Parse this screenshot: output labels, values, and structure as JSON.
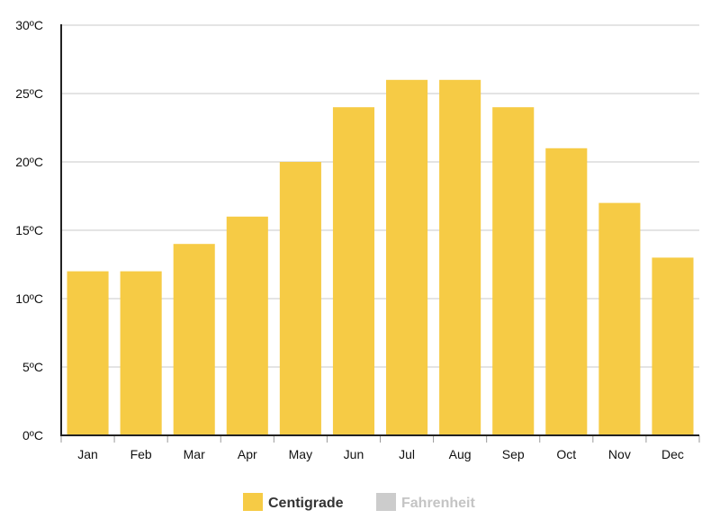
{
  "chart_data": {
    "type": "bar",
    "title": "",
    "xlabel": "",
    "ylabel": "",
    "categories": [
      "Jan",
      "Feb",
      "Mar",
      "Apr",
      "May",
      "Jun",
      "Jul",
      "Aug",
      "Sep",
      "Oct",
      "Nov",
      "Dec"
    ],
    "series": [
      {
        "name": "Centigrade",
        "color": "#f6cb45",
        "values": [
          12,
          12,
          14,
          16,
          20,
          24,
          26,
          26,
          24,
          21,
          17,
          13
        ]
      }
    ],
    "ylim": [
      0,
      30
    ],
    "yticks": [
      0,
      5,
      10,
      15,
      20,
      25,
      30
    ],
    "ytick_labels": [
      "0ºC",
      "5ºC",
      "10ºC",
      "15ºC",
      "20ºC",
      "25ºC",
      "30ºC"
    ],
    "grid": true,
    "legend": {
      "placement": "bottom-center",
      "items": [
        {
          "label": "Centigrade",
          "color": "#f6cb45",
          "active": true
        },
        {
          "label": "Fahrenheit",
          "color": "#cccccc",
          "active": false
        }
      ]
    }
  }
}
